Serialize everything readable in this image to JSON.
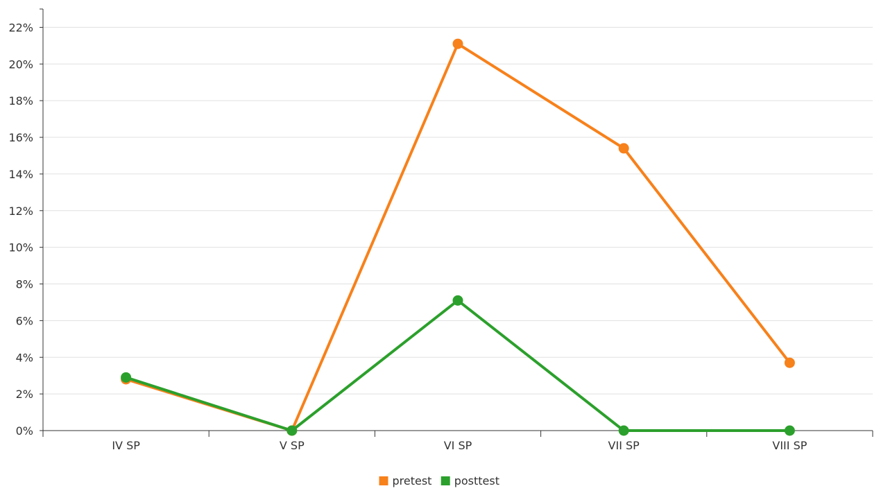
{
  "chart_data": {
    "type": "line",
    "categories": [
      "IV SP",
      "V SP",
      "VI SP",
      "VII SP",
      "VIII SP"
    ],
    "y_ticks": [
      "0%",
      "2%",
      "4%",
      "6%",
      "8%",
      "10%",
      "12%",
      "14%",
      "16%",
      "18%",
      "20%",
      "22%"
    ],
    "ylim": [
      0,
      23
    ],
    "y_unit": "%",
    "grid": true,
    "legend_position": "bottom-center",
    "series": [
      {
        "name": "pretest",
        "color": "#f7811b",
        "values": [
          2.8,
          0,
          21.1,
          15.4,
          3.7
        ]
      },
      {
        "name": "posttest",
        "color": "#2ca02c",
        "values": [
          2.9,
          0,
          7.1,
          0,
          0
        ]
      }
    ]
  }
}
